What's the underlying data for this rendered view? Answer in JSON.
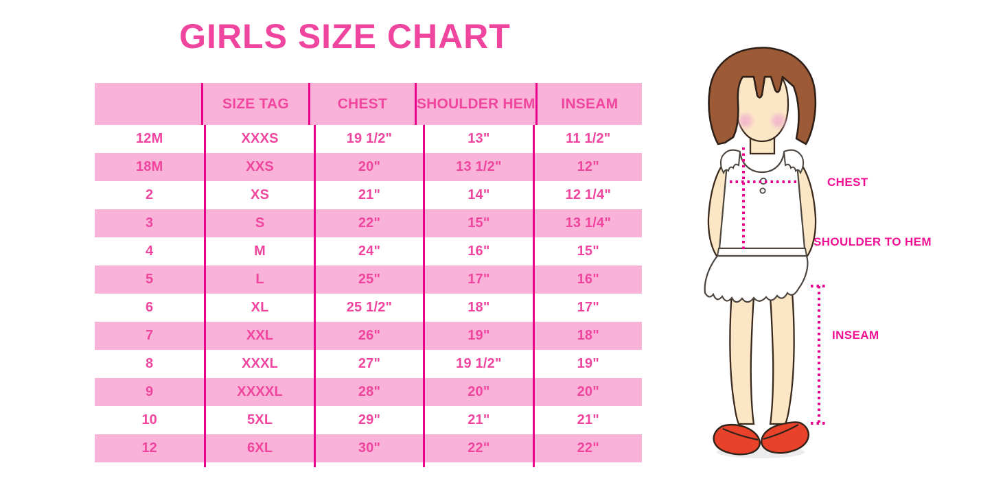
{
  "title": "GIRLS SIZE CHART",
  "colors": {
    "light_pink": "#FAB3D8",
    "rule": "#E8008C",
    "text_pink": "#F0459E",
    "label_magenta": "#F00F93",
    "hair_brown": "#9C5B36",
    "skin": "#FBE7C5",
    "shoe_red": "#E9422B"
  },
  "table": {
    "headers": [
      "",
      "SIZE TAG",
      "CHEST",
      "SHOULDER HEM",
      "INSEAM"
    ],
    "rows": [
      [
        "12M",
        "XXXS",
        "19 1/2\"",
        "13\"",
        "11 1/2\""
      ],
      [
        "18M",
        "XXS",
        "20\"",
        "13 1/2\"",
        "12\""
      ],
      [
        "2",
        "XS",
        "21\"",
        "14\"",
        "12 1/4\""
      ],
      [
        "3",
        "S",
        "22\"",
        "15\"",
        "13 1/4\""
      ],
      [
        "4",
        "M",
        "24\"",
        "16\"",
        "15\""
      ],
      [
        "5",
        "L",
        "25\"",
        "17\"",
        "16\""
      ],
      [
        "6",
        "XL",
        "25 1/2\"",
        "18\"",
        "17\""
      ],
      [
        "7",
        "XXL",
        "26\"",
        "19\"",
        "18\""
      ],
      [
        "8",
        "XXXL",
        "27\"",
        "19 1/2\"",
        "19\""
      ],
      [
        "9",
        "XXXXL",
        "28\"",
        "20\"",
        "20\""
      ],
      [
        "10",
        "5XL",
        "29\"",
        "21\"",
        "21\""
      ],
      [
        "12",
        "6XL",
        "30\"",
        "22\"",
        "22\""
      ]
    ]
  },
  "figure_labels": {
    "chest": "CHEST",
    "shoulder_to_hem": "SHOULDER TO HEM",
    "inseam": "INSEAM"
  }
}
